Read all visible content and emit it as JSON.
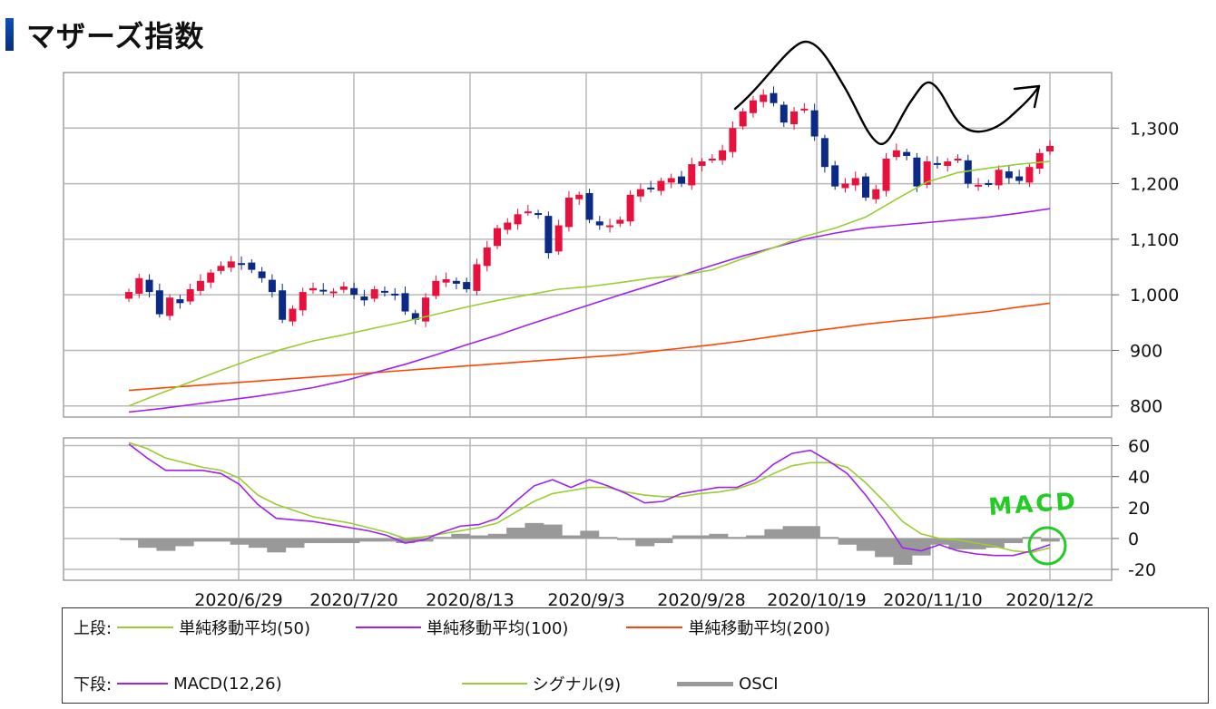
{
  "title": "マザーズ指数",
  "colors": {
    "up": "#e8103c",
    "down": "#0b2a86",
    "sma50": "#9acd32",
    "sma100": "#a020f0",
    "sma200": "#ff4500",
    "signal": "#9acd32",
    "macd": "#a020f0",
    "osci": "#999999",
    "grid": "#b8b8b8",
    "annotation_black": "#000000",
    "annotation_green": "#22cc22"
  },
  "legend": {
    "upper_label": "上段:",
    "lower_label": "下段:",
    "sma50": "単純移動平均(50)",
    "sma100": "単純移動平均(100)",
    "sma200": "単純移動平均(200)",
    "macd": "MACD(12,26)",
    "signal": "シグナル(9)",
    "osci": "OSCI"
  },
  "annotation_text": "MACD",
  "chart_data": [
    {
      "type": "candlestick",
      "panel": "upper",
      "x_ticks": [
        "2020/6/29",
        "2020/7/20",
        "2020/8/13",
        "2020/9/3",
        "2020/9/28",
        "2020/10/19",
        "2020/11/10",
        "2020/12/2"
      ],
      "y_ticks": [
        "800",
        "900",
        "1,000",
        "1,100",
        "1,200",
        "1,300"
      ],
      "ylim": [
        780,
        1400
      ],
      "close": [
        1005,
        1030,
        1005,
        965,
        995,
        985,
        1010,
        1025,
        1040,
        1052,
        1060,
        1055,
        1045,
        1030,
        1005,
        955,
        975,
        1005,
        1012,
        1008,
        1006,
        1015,
        1000,
        990,
        1010,
        1005,
        1000,
        970,
        955,
        995,
        1025,
        1028,
        1020,
        1010,
        1055,
        1085,
        1120,
        1130,
        1145,
        1150,
        1145,
        1075,
        1125,
        1175,
        1180,
        1135,
        1125,
        1125,
        1135,
        1180,
        1190,
        1190,
        1205,
        1210,
        1200,
        1235,
        1240,
        1245,
        1260,
        1300,
        1330,
        1350,
        1360,
        1345,
        1310,
        1330,
        1335,
        1285,
        1230,
        1195,
        1200,
        1210,
        1175,
        1190,
        1245,
        1260,
        1250,
        1195,
        1240,
        1235,
        1240,
        1245,
        1200,
        1198,
        1200,
        1225,
        1210,
        1205,
        1230,
        1255,
        1268
      ],
      "sma50": [
        800,
        822,
        843,
        864,
        884,
        902,
        917,
        928,
        940,
        952,
        965,
        978,
        990,
        1000,
        1010,
        1015,
        1022,
        1030,
        1035,
        1045,
        1065,
        1085,
        1105,
        1120,
        1140,
        1172,
        1203,
        1220,
        1228,
        1235,
        1240
      ],
      "sma100": [
        789,
        795,
        802,
        809,
        816,
        824,
        833,
        845,
        860,
        875,
        892,
        910,
        927,
        946,
        964,
        982,
        1000,
        1017,
        1035,
        1053,
        1070,
        1085,
        1100,
        1111,
        1120,
        1125,
        1130,
        1135,
        1140,
        1147,
        1155
      ],
      "sma200": [
        828,
        832,
        836,
        840,
        844,
        848,
        852,
        856,
        860,
        864,
        868,
        872,
        876,
        880,
        884,
        888,
        892,
        898,
        904,
        910,
        917,
        925,
        933,
        940,
        947,
        953,
        958,
        964,
        970,
        978,
        985
      ]
    },
    {
      "type": "line",
      "panel": "lower",
      "y_ticks": [
        "60",
        "40",
        "20",
        "0",
        "-20"
      ],
      "ylim": [
        -27,
        65
      ],
      "macd": [
        61,
        52,
        44,
        44,
        44,
        42,
        35,
        22,
        13,
        12,
        11,
        9,
        7,
        5,
        2,
        -3,
        -1,
        4,
        8,
        9,
        13,
        24,
        34,
        38,
        33,
        38,
        34,
        29,
        23,
        24,
        29,
        31,
        33,
        33,
        38,
        48,
        55,
        57,
        50,
        42,
        28,
        12,
        -6,
        -8,
        -4,
        -8,
        -10,
        -11,
        -11,
        -8,
        -4
      ],
      "signal": [
        62,
        58,
        52,
        49,
        46,
        44,
        39,
        28,
        22,
        18,
        14,
        12,
        10,
        7,
        4,
        0,
        1,
        3,
        5,
        7,
        10,
        17,
        24,
        29,
        31,
        33,
        33,
        30,
        28,
        27,
        27,
        29,
        30,
        32,
        36,
        42,
        47,
        49,
        49,
        46,
        36,
        24,
        11,
        3,
        0,
        -1,
        -3,
        -5,
        -8,
        -9,
        -6
      ],
      "osci": [
        -1,
        -6,
        -8,
        -5,
        -2,
        -2,
        -4,
        -6,
        -9,
        -6,
        -3,
        -3,
        -3,
        -2,
        -2,
        -3,
        -2,
        1,
        3,
        2,
        3,
        7,
        10,
        9,
        2,
        5,
        1,
        -1,
        -5,
        -3,
        2,
        2,
        3,
        1,
        2,
        6,
        8,
        8,
        1,
        -4,
        -8,
        -12,
        -17,
        -11,
        -4,
        -7,
        -7,
        -6,
        -3,
        1,
        -2
      ]
    }
  ]
}
